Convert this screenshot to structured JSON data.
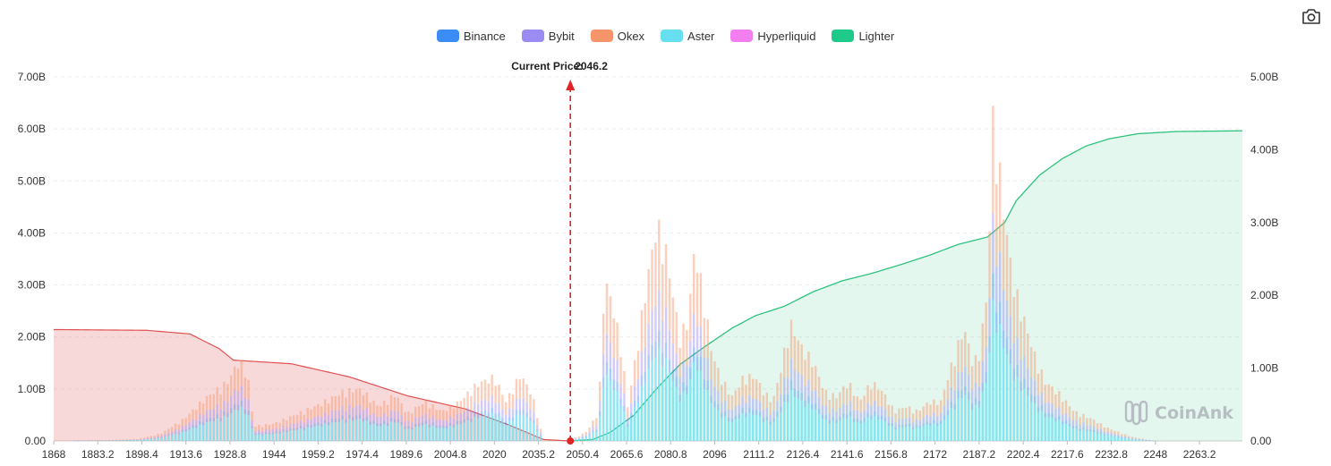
{
  "toolbar": {
    "camera_icon": "camera-icon"
  },
  "watermark": {
    "text": "CoinAnk"
  },
  "colors": {
    "Binance": "#3b8cf5",
    "Bybit": "#9a8cf2",
    "Okex": "#f7956a",
    "Aster": "#67dff0",
    "Hyperliquid": "#f27ef0",
    "Lighter": "#1ec98a",
    "short_cumulative": "#e05050",
    "long_cumulative": "#2ec27e",
    "price_line": "#e02424"
  },
  "chart_data": {
    "type": "bar",
    "title": "",
    "xlabel": "",
    "ylabel": "",
    "legend": [
      "Binance",
      "Bybit",
      "Okex",
      "Aster",
      "Hyperliquid",
      "Lighter"
    ],
    "legend_position": "top-center",
    "grid": true,
    "current_price_label": "Current Price:",
    "current_price": "2046.2",
    "x_tick_labels": [
      "1868",
      "1883.2",
      "1898.4",
      "1913.6",
      "1928.8",
      "1944",
      "1959.2",
      "1974.4",
      "1989.6",
      "2004.8",
      "2020",
      "2035.2",
      "2050.4",
      "2065.6",
      "2080.8",
      "2096",
      "2111.2",
      "2126.4",
      "2141.6",
      "2156.8",
      "2172",
      "2187.2",
      "2202.4",
      "2217.6",
      "2232.8",
      "2248",
      "2263.2"
    ],
    "y_left_ticks": [
      "0.00",
      "1.00B",
      "2.00B",
      "3.00B",
      "4.00B",
      "5.00B",
      "6.00B",
      "7.00B"
    ],
    "y_right_ticks": [
      "0.00",
      "1.00B",
      "2.00B",
      "3.00B",
      "4.00B",
      "5.00B"
    ],
    "x_range": [
      1868,
      2278
    ],
    "ylim_left": [
      0,
      7000000000
    ],
    "ylim_right": [
      0,
      5000000000
    ],
    "bar_profile": [
      [
        1868,
        0.0
      ],
      [
        1890,
        0.02
      ],
      [
        1898,
        0.05
      ],
      [
        1905,
        0.15
      ],
      [
        1913,
        0.45
      ],
      [
        1920,
        0.85
      ],
      [
        1928,
        1.2
      ],
      [
        1932,
        1.65
      ],
      [
        1935,
        1.3
      ],
      [
        1937,
        0.3
      ],
      [
        1944,
        0.35
      ],
      [
        1952,
        0.55
      ],
      [
        1960,
        0.75
      ],
      [
        1968,
        1.0
      ],
      [
        1974,
        1.05
      ],
      [
        1980,
        0.7
      ],
      [
        1986,
        0.95
      ],
      [
        1990,
        0.55
      ],
      [
        1996,
        0.8
      ],
      [
        2002,
        0.6
      ],
      [
        2008,
        0.8
      ],
      [
        2014,
        1.15
      ],
      [
        2020,
        1.3
      ],
      [
        2024,
        0.8
      ],
      [
        2029,
        1.35
      ],
      [
        2033,
        0.95
      ],
      [
        2037,
        0.0
      ],
      [
        2046,
        0.0
      ],
      [
        2052,
        0.2
      ],
      [
        2056,
        0.6
      ],
      [
        2058,
        3.3
      ],
      [
        2061,
        2.7
      ],
      [
        2064,
        1.8
      ],
      [
        2066,
        0.7
      ],
      [
        2069,
        1.8
      ],
      [
        2072,
        3.0
      ],
      [
        2076,
        4.4
      ],
      [
        2079,
        3.9
      ],
      [
        2082,
        2.8
      ],
      [
        2084,
        2.1
      ],
      [
        2087,
        2.5
      ],
      [
        2089,
        3.9
      ],
      [
        2092,
        3.0
      ],
      [
        2095,
        1.8
      ],
      [
        2098,
        1.3
      ],
      [
        2102,
        0.9
      ],
      [
        2106,
        1.3
      ],
      [
        2110,
        1.3
      ],
      [
        2113,
        1.0
      ],
      [
        2116,
        0.8
      ],
      [
        2119,
        1.5
      ],
      [
        2122,
        2.4
      ],
      [
        2126,
        1.9
      ],
      [
        2130,
        1.6
      ],
      [
        2134,
        1.0
      ],
      [
        2138,
        0.9
      ],
      [
        2142,
        1.2
      ],
      [
        2146,
        0.8
      ],
      [
        2150,
        1.2
      ],
      [
        2154,
        1.0
      ],
      [
        2158,
        0.6
      ],
      [
        2162,
        0.7
      ],
      [
        2166,
        0.6
      ],
      [
        2170,
        0.8
      ],
      [
        2174,
        0.8
      ],
      [
        2178,
        1.6
      ],
      [
        2182,
        2.3
      ],
      [
        2185,
        1.6
      ],
      [
        2187,
        1.7
      ],
      [
        2190,
        3.0
      ],
      [
        2192,
        6.5
      ],
      [
        2194,
        5.6
      ],
      [
        2196,
        4.5
      ],
      [
        2199,
        3.2
      ],
      [
        2202,
        2.6
      ],
      [
        2206,
        1.8
      ],
      [
        2210,
        1.2
      ],
      [
        2215,
        0.95
      ],
      [
        2220,
        0.6
      ],
      [
        2226,
        0.45
      ],
      [
        2232,
        0.25
      ],
      [
        2240,
        0.08
      ],
      [
        2248,
        0.0
      ],
      [
        2278,
        0.0
      ]
    ],
    "short_cumulative_profile": [
      [
        1868,
        1.53
      ],
      [
        1900,
        1.52
      ],
      [
        1915,
        1.47
      ],
      [
        1925,
        1.27
      ],
      [
        1930,
        1.11
      ],
      [
        1950,
        1.06
      ],
      [
        1970,
        0.88
      ],
      [
        1990,
        0.62
      ],
      [
        2010,
        0.44
      ],
      [
        2025,
        0.22
      ],
      [
        2037,
        0.02
      ],
      [
        2046,
        0.0
      ]
    ],
    "long_cumulative_profile": [
      [
        2046,
        0.0
      ],
      [
        2054,
        0.02
      ],
      [
        2060,
        0.12
      ],
      [
        2068,
        0.35
      ],
      [
        2076,
        0.72
      ],
      [
        2084,
        1.05
      ],
      [
        2092,
        1.28
      ],
      [
        2102,
        1.55
      ],
      [
        2110,
        1.72
      ],
      [
        2120,
        1.85
      ],
      [
        2130,
        2.05
      ],
      [
        2140,
        2.2
      ],
      [
        2150,
        2.3
      ],
      [
        2160,
        2.42
      ],
      [
        2170,
        2.55
      ],
      [
        2180,
        2.7
      ],
      [
        2190,
        2.8
      ],
      [
        2196,
        3.0
      ],
      [
        2200,
        3.3
      ],
      [
        2208,
        3.65
      ],
      [
        2216,
        3.88
      ],
      [
        2224,
        4.05
      ],
      [
        2232,
        4.15
      ],
      [
        2242,
        4.22
      ],
      [
        2255,
        4.25
      ],
      [
        2278,
        4.26
      ]
    ]
  }
}
